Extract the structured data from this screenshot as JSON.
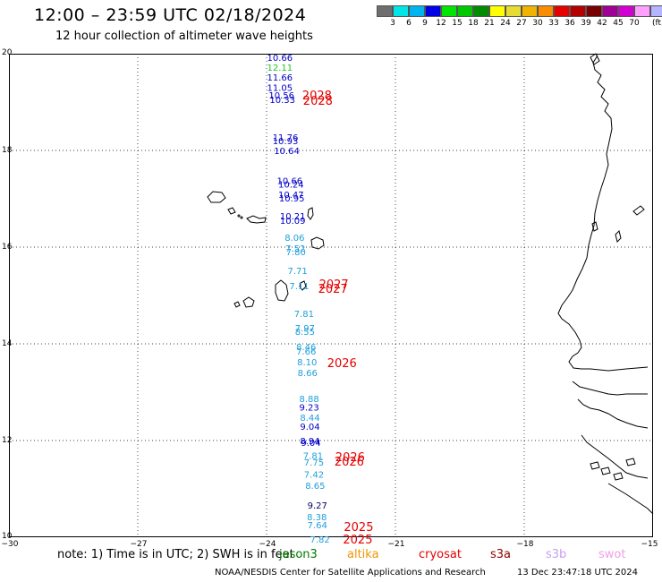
{
  "title": "12:00 – 23:59 UTC 02/18/2024",
  "subtitle": "12 hour collection of altimeter wave heights",
  "legend": {
    "colors": [
      "#6e6e6e",
      "#00e6e6",
      "#00b4f0",
      "#0000e6",
      "#00e600",
      "#00c800",
      "#008c00",
      "#ffff00",
      "#e6dc32",
      "#f0b400",
      "#fa8c00",
      "#e60000",
      "#b40000",
      "#780000",
      "#a00096",
      "#d200d2",
      "#ffa0ff",
      "#b4b4ff",
      "#000000"
    ],
    "labels": [
      "3",
      "6",
      "9",
      "12",
      "15",
      "18",
      "21",
      "24",
      "27",
      "30",
      "33",
      "36",
      "39",
      "42",
      "45",
      "70"
    ],
    "unit": "(ft)"
  },
  "axes": {
    "y_ticks": [
      "20",
      "18",
      "16",
      "14",
      "12",
      "10"
    ],
    "x_ticks": [
      "−30",
      "−27",
      "−24",
      "−21",
      "−18",
      "−15"
    ]
  },
  "observations": [
    {
      "value": "10.66",
      "color": "#0000c8",
      "lon": -23.99,
      "lat": 19.93
    },
    {
      "value": "12.11",
      "color": "#20c820",
      "lon": -23.99,
      "lat": 19.72
    },
    {
      "value": "11.66",
      "color": "#0000c8",
      "lon": -23.99,
      "lat": 19.52
    },
    {
      "value": "11.05",
      "color": "#0000c8",
      "lon": -23.99,
      "lat": 19.31
    },
    {
      "value": "10.56",
      "color": "#0000c8",
      "lon": -23.95,
      "lat": 19.15
    },
    {
      "value": "10.33",
      "color": "#0000c8",
      "lon": -23.93,
      "lat": 19.06
    },
    {
      "value": "11.76",
      "color": "#0000c8",
      "lon": -23.86,
      "lat": 18.28
    },
    {
      "value": "10.93",
      "color": "#0000c8",
      "lon": -23.86,
      "lat": 18.2
    },
    {
      "value": "10.64",
      "color": "#0000c8",
      "lon": -23.83,
      "lat": 18.0
    },
    {
      "value": "10.66",
      "color": "#0000c8",
      "lon": -23.76,
      "lat": 17.38
    },
    {
      "value": "10.24",
      "color": "#0000c8",
      "lon": -23.73,
      "lat": 17.31
    },
    {
      "value": "10.47",
      "color": "#0000c8",
      "lon": -23.73,
      "lat": 17.09
    },
    {
      "value": "10.95",
      "color": "#0000c8",
      "lon": -23.71,
      "lat": 17.02
    },
    {
      "value": "10.21",
      "color": "#0000c8",
      "lon": -23.69,
      "lat": 16.65
    },
    {
      "value": "10.09",
      "color": "#0000c8",
      "lon": -23.69,
      "lat": 16.56
    },
    {
      "value": "8.06",
      "color": "#1ea0dc",
      "lon": -23.58,
      "lat": 16.2
    },
    {
      "value": "7.52",
      "color": "#1ea0dc",
      "lon": -23.56,
      "lat": 15.98
    },
    {
      "value": "7.80",
      "color": "#1ea0dc",
      "lon": -23.55,
      "lat": 15.91
    },
    {
      "value": "7.71",
      "color": "#1ea0dc",
      "lon": -23.51,
      "lat": 15.52
    },
    {
      "value": "7.11",
      "color": "#1ea0dc",
      "lon": -23.47,
      "lat": 15.2
    },
    {
      "value": "7.81",
      "color": "#1ea0dc",
      "lon": -23.36,
      "lat": 14.63
    },
    {
      "value": "7.97",
      "color": "#1ea0dc",
      "lon": -23.34,
      "lat": 14.33
    },
    {
      "value": "8.55",
      "color": "#1ea0dc",
      "lon": -23.34,
      "lat": 14.26
    },
    {
      "value": "8.46",
      "color": "#1ea0dc",
      "lon": -23.31,
      "lat": 13.94
    },
    {
      "value": "7.66",
      "color": "#1ea0dc",
      "lon": -23.31,
      "lat": 13.85
    },
    {
      "value": "8.10",
      "color": "#1ea0dc",
      "lon": -23.29,
      "lat": 13.63
    },
    {
      "value": "8.66",
      "color": "#1ea0dc",
      "lon": -23.28,
      "lat": 13.41
    },
    {
      "value": "8.88",
      "color": "#1ea0dc",
      "lon": -23.24,
      "lat": 12.87
    },
    {
      "value": "9.23",
      "color": "#0000c8",
      "lon": -23.24,
      "lat": 12.69
    },
    {
      "value": "8.44",
      "color": "#1ea0dc",
      "lon": -23.22,
      "lat": 12.48
    },
    {
      "value": "9.04",
      "color": "#0000c8",
      "lon": -23.22,
      "lat": 12.3
    },
    {
      "value": "8.94",
      "color": "#0000c8",
      "lon": -23.22,
      "lat": 12.0
    },
    {
      "value": "9.04",
      "color": "#0000c8",
      "lon": -23.2,
      "lat": 11.96
    },
    {
      "value": "7.81",
      "color": "#1ea0dc",
      "lon": -23.15,
      "lat": 11.69
    },
    {
      "value": "7.75",
      "color": "#1ea0dc",
      "lon": -23.13,
      "lat": 11.56
    },
    {
      "value": "7.42",
      "color": "#1ea0dc",
      "lon": -23.13,
      "lat": 11.31
    },
    {
      "value": "8.65",
      "color": "#1ea0dc",
      "lon": -23.1,
      "lat": 11.07
    },
    {
      "value": "9.27",
      "color": "#000064",
      "lon": -23.05,
      "lat": 10.67
    },
    {
      "value": "8.38",
      "color": "#1ea0dc",
      "lon": -23.06,
      "lat": 10.43
    },
    {
      "value": "7.64",
      "color": "#1ea0dc",
      "lon": -23.05,
      "lat": 10.26
    },
    {
      "value": "7.82",
      "color": "#1ea0dc",
      "lon": -22.99,
      "lat": 9.96
    }
  ],
  "time_labels": [
    {
      "text": "2028",
      "lon": -23.17,
      "lat": 19.15
    },
    {
      "text": "2028",
      "lon": -23.15,
      "lat": 19.04
    },
    {
      "text": "2027",
      "lon": -22.78,
      "lat": 15.24
    },
    {
      "text": "2027",
      "lon": -22.8,
      "lat": 15.15
    },
    {
      "text": "2026",
      "lon": -22.59,
      "lat": 13.61
    },
    {
      "text": "2026",
      "lon": -22.4,
      "lat": 11.67
    },
    {
      "text": "2026",
      "lon": -22.42,
      "lat": 11.57
    },
    {
      "text": "2025",
      "lon": -22.2,
      "lat": 10.22
    },
    {
      "text": "2025",
      "lon": -22.22,
      "lat": 9.96
    }
  ],
  "time_label_color": "#e60000",
  "note": "note:  1) Time is in UTC;  2) SWH is in feet",
  "satellites": [
    {
      "name": "jason3",
      "color": "#007800"
    },
    {
      "name": "altika",
      "color": "#f09600"
    },
    {
      "name": "cryosat",
      "color": "#e60000"
    },
    {
      "name": "s3a",
      "color": "#8c0000"
    },
    {
      "name": "s3b",
      "color": "#c8a0f0"
    },
    {
      "name": "swot",
      "color": "#f0a0e6"
    }
  ],
  "footer": "NOAA/NESDIS Center for Satellite Applications and Research",
  "footer_timestamp": "13 Dec 23:47:18 UTC 2024"
}
